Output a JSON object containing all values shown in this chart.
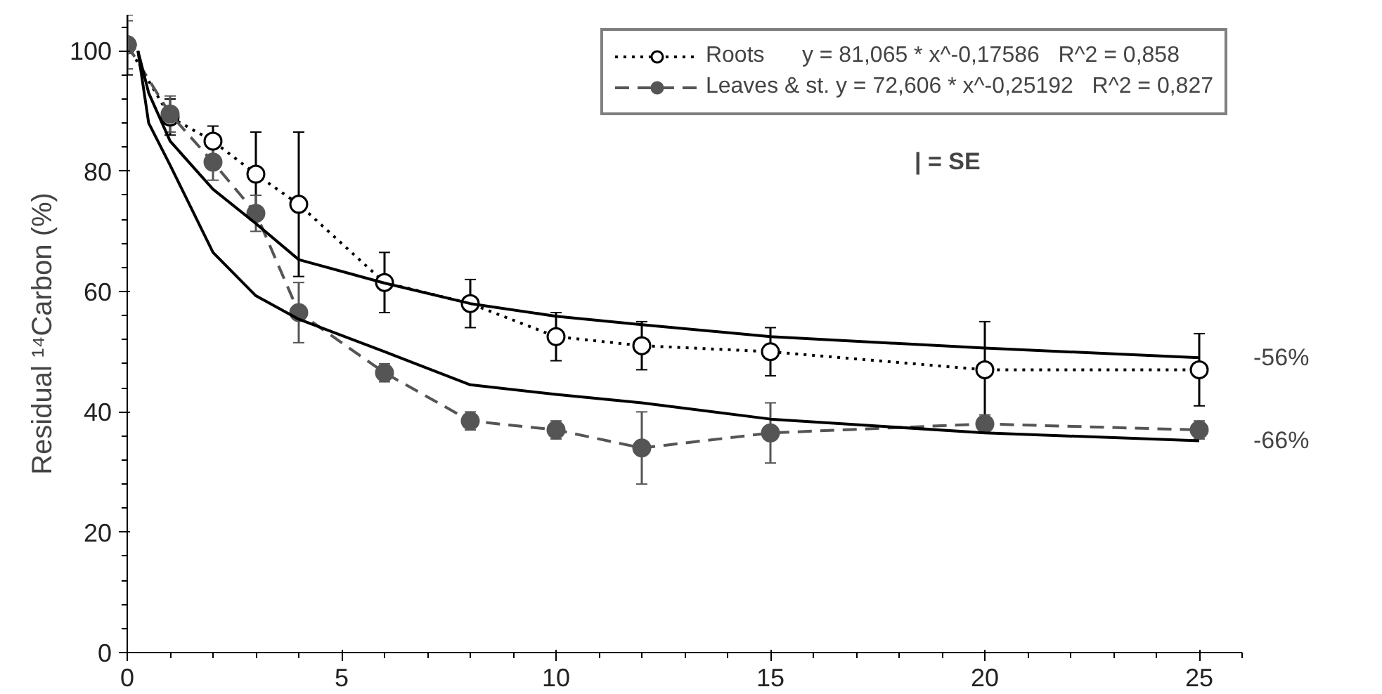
{
  "chart_data": {
    "type": "line",
    "ylabel": "Residual ¹⁴Carbon (%)",
    "xlim": [
      0,
      26
    ],
    "ylim": [
      0,
      106
    ],
    "xticks": [
      0,
      5,
      10,
      15,
      20,
      25
    ],
    "yticks": [
      0,
      20,
      40,
      60,
      80,
      100
    ],
    "grid": false,
    "legend": "top right",
    "series": [
      {
        "name": "Roots      y = 81,065 * x^-0,17586   R^2 = 0,858",
        "type": "line",
        "color": "#000000",
        "marker": "circle",
        "line_style": "dotted",
        "x": [
          0,
          1,
          2,
          3,
          4,
          6,
          8,
          10,
          12,
          15,
          20,
          25
        ],
        "values": [
          101,
          89,
          85,
          79.5,
          74.5,
          61.5,
          58,
          52.5,
          51,
          50,
          47,
          47
        ],
        "errors": [
          5,
          3,
          2.5,
          7,
          12,
          5,
          4,
          4,
          4,
          4,
          8,
          6
        ]
      },
      {
        "name": "Leaves & st. y = 72,606 * x^-0,25192   R^2 = 0,827",
        "color": "#555555",
        "marker": "circle",
        "line_style": "dashed",
        "x": [
          0,
          1,
          2,
          3,
          4,
          6,
          8,
          10,
          12,
          15,
          20,
          25
        ],
        "values": [
          101,
          89.5,
          81.5,
          73,
          56.5,
          46.5,
          38.5,
          37,
          34,
          36.5,
          38,
          37
        ],
        "errors": [
          4,
          3,
          3,
          3,
          5,
          1.5,
          1.5,
          1.5,
          6,
          5,
          1.5,
          1.5
        ]
      },
      {
        "color": "#000000",
        "marker": "none",
        "line_style": "solid",
        "x": [
          0.25,
          0.5,
          1,
          2,
          3,
          4,
          6,
          8,
          10,
          12,
          15,
          20,
          25
        ],
        "values": [
          100,
          93,
          85,
          77,
          71.3,
          65.3,
          61.4,
          58,
          55.9,
          54.5,
          52.5,
          50.6,
          49
        ]
      },
      {
        "color": "#000000",
        "marker": "none",
        "line_style": "solid",
        "x": [
          0.25,
          0.5,
          1,
          2,
          3,
          4,
          6,
          8,
          10,
          12,
          15,
          20,
          25
        ],
        "values": [
          100,
          88,
          81,
          66.5,
          59.3,
          55.4,
          50,
          44.5,
          42.9,
          41.5,
          38.8,
          36.5,
          35.2
        ]
      }
    ],
    "annotations": [
      "-56%",
      "-66%",
      "| = SE"
    ]
  }
}
